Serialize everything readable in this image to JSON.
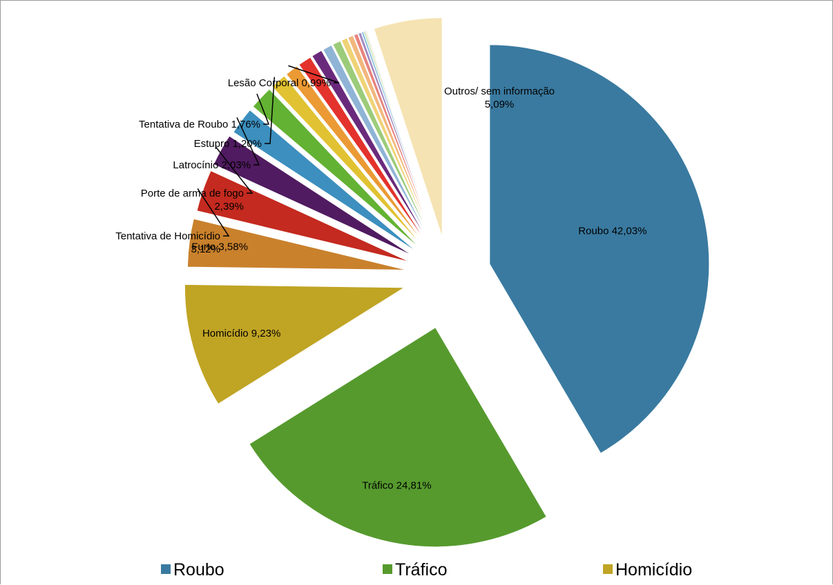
{
  "chart_data": {
    "type": "pie",
    "title": "",
    "slices": [
      {
        "label": "Roubo",
        "value": 42.03,
        "display": "Roubo  42,03%",
        "color": "#3a7aa0"
      },
      {
        "label": "Tráfico",
        "value": 24.81,
        "display": "Tráfico  24,81%",
        "color": "#569a2e"
      },
      {
        "label": "Homicídio",
        "value": 9.23,
        "display": "Homicídio 9,23%",
        "color": "#c0a424"
      },
      {
        "label": "Furto",
        "value": 3.58,
        "display": "Furto 3,58%",
        "color": "#c9812c"
      },
      {
        "label": "Tentativa de Homicídio",
        "value": 3.12,
        "display": "Tentativa de Homicídio\n3,12%",
        "color": "#c42a1f"
      },
      {
        "label": "Porte de arma de fogo",
        "value": 2.39,
        "display": "Porte de arma de fogo\n2,39%",
        "color": "#501b60"
      },
      {
        "label": "Latrocínio",
        "value": 2.03,
        "display": "Latrocínio 2,03%",
        "color": "#3c8fbe"
      },
      {
        "label": "Tentativa de Roubo",
        "value": 1.76,
        "display": "Tentativa de Roubo 1,76%",
        "color": "#63b233"
      },
      {
        "label": "Estupro",
        "value": 1.2,
        "display": "Estupro 1,20%",
        "color": "#e1c232"
      },
      {
        "label": "Lesão Corporal",
        "value": 0.99,
        "display": "Lesão Corporal 0,99%",
        "color": "#eb9a34"
      },
      {
        "label": "",
        "value": 0.99,
        "display": "",
        "color": "#e3332c"
      },
      {
        "label": "",
        "value": 0.8,
        "display": "",
        "color": "#6a2a7c"
      },
      {
        "label": "",
        "value": 0.7,
        "display": "",
        "color": "#8fb4d6"
      },
      {
        "label": "",
        "value": 0.6,
        "display": "",
        "color": "#9ccc7a"
      },
      {
        "label": "",
        "value": 0.45,
        "display": "",
        "color": "#f0d377"
      },
      {
        "label": "",
        "value": 0.4,
        "display": "",
        "color": "#f2b77d"
      },
      {
        "label": "",
        "value": 0.3,
        "display": "",
        "color": "#e8847e"
      },
      {
        "label": "",
        "value": 0.22,
        "display": "",
        "color": "#a58ac0"
      },
      {
        "label": "",
        "value": 0.15,
        "display": "",
        "color": "#7fb8dc"
      },
      {
        "label": "",
        "value": 0.1,
        "display": "",
        "color": "#a9d18e"
      },
      {
        "label": "",
        "value": 0.08,
        "display": "",
        "color": "#d8c98d"
      },
      {
        "label": "",
        "value": 0.06,
        "display": "",
        "color": "#c9c9c9"
      },
      {
        "label": "",
        "value": 0.05,
        "display": "",
        "color": "#7b4a95"
      },
      {
        "label": "Outros/ sem informação",
        "value": 5.09,
        "display": "Outros/ sem informação\n5,09%",
        "color": "#f5e3b3"
      }
    ],
    "legend": {
      "position": "bottom",
      "entries": [
        {
          "label": "Roubo",
          "color": "#3a7aa0"
        },
        {
          "label": "Tráfico",
          "color": "#569a2e"
        },
        {
          "label": "Homicídio",
          "color": "#c0a424"
        }
      ]
    }
  }
}
